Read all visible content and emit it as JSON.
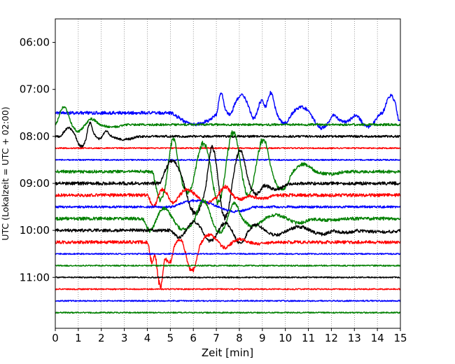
{
  "chart_data": {
    "type": "line",
    "title": "",
    "xlabel": "Zeit  [min]",
    "ylabel": "UTC (Lokalzeit = UTC + 02:00)",
    "xlim": [
      0,
      15
    ],
    "xticks": [
      0,
      1,
      2,
      3,
      4,
      5,
      6,
      7,
      8,
      9,
      10,
      11,
      12,
      13,
      14,
      15
    ],
    "ylim_minutes_utc": [
      330,
      725
    ],
    "yticks": [
      {
        "minutes": 360,
        "label": "06:00"
      },
      {
        "minutes": 420,
        "label": "07:00"
      },
      {
        "minutes": 480,
        "label": "08:00"
      },
      {
        "minutes": 540,
        "label": "09:00"
      },
      {
        "minutes": 600,
        "label": "10:00"
      },
      {
        "minutes": 660,
        "label": "11:00"
      }
    ],
    "grid": "vertical dotted at each minute",
    "legend": "none",
    "series_colors": [
      "#0000ff",
      "#008000",
      "#000000",
      "#ff0000"
    ],
    "trace_spacing_minutes": 15,
    "traces": [
      {
        "start": "07:30",
        "color": "#0000ff",
        "activity": "high",
        "events": [
          [
            5.0,
            7.0,
            15
          ],
          [
            7.0,
            7.3,
            -35
          ],
          [
            7.3,
            7.6,
            5
          ],
          [
            7.6,
            8.4,
            -25
          ],
          [
            8.4,
            8.7,
            10
          ],
          [
            8.7,
            9.1,
            -20
          ],
          [
            9.1,
            9.5,
            -30
          ],
          [
            9.5,
            10.2,
            15
          ],
          [
            10.2,
            11.0,
            -8
          ],
          [
            11.0,
            12.0,
            20
          ],
          [
            12.0,
            13.0,
            12
          ],
          [
            13.0,
            14.0,
            18
          ],
          [
            14.2,
            14.8,
            -25
          ],
          [
            14.8,
            15.0,
            20
          ]
        ]
      },
      {
        "start": "07:45",
        "color": "#008000",
        "activity": "medium",
        "events": [
          [
            0.0,
            0.6,
            -25
          ],
          [
            0.6,
            1.2,
            10
          ],
          [
            1.2,
            1.8,
            -8
          ],
          [
            1.8,
            3.0,
            3
          ]
        ]
      },
      {
        "start": "08:00",
        "color": "#000000",
        "activity": "medium",
        "events": [
          [
            0.2,
            0.8,
            -12
          ],
          [
            0.8,
            1.3,
            15
          ],
          [
            1.3,
            1.6,
            -25
          ],
          [
            1.6,
            2.0,
            5
          ],
          [
            2.0,
            2.3,
            -10
          ],
          [
            2.3,
            3.5,
            4
          ]
        ]
      },
      {
        "start": "08:15",
        "color": "#ff0000",
        "activity": "low",
        "events": []
      },
      {
        "start": "08:30",
        "color": "#0000ff",
        "activity": "low",
        "events": []
      },
      {
        "start": "08:45",
        "color": "#008000",
        "activity": "high",
        "events": [
          [
            4.2,
            4.8,
            40
          ],
          [
            4.8,
            5.3,
            -50
          ],
          [
            5.3,
            6.0,
            30
          ],
          [
            6.0,
            6.7,
            -40
          ],
          [
            6.7,
            7.3,
            45
          ],
          [
            7.3,
            8.0,
            -55
          ],
          [
            8.0,
            8.6,
            35
          ],
          [
            8.6,
            9.3,
            -45
          ],
          [
            9.3,
            10.2,
            25
          ],
          [
            10.2,
            11.2,
            -10
          ],
          [
            11.2,
            12.5,
            3
          ]
        ]
      },
      {
        "start": "09:00",
        "color": "#000000",
        "activity": "high",
        "events": [
          [
            4.5,
            5.5,
            -30
          ],
          [
            5.5,
            6.5,
            40
          ],
          [
            6.5,
            7.0,
            -55
          ],
          [
            7.0,
            7.6,
            50
          ],
          [
            7.6,
            8.3,
            -45
          ],
          [
            8.3,
            9.0,
            15
          ],
          [
            9.0,
            10.0,
            8
          ]
        ]
      },
      {
        "start": "09:15",
        "color": "#ff0000",
        "activity": "high",
        "events": [
          [
            4.0,
            4.4,
            18
          ],
          [
            4.4,
            4.8,
            -10
          ],
          [
            4.8,
            5.3,
            12
          ],
          [
            5.3,
            6.0,
            -8
          ],
          [
            6.0,
            7.0,
            10
          ],
          [
            7.0,
            7.6,
            -12
          ],
          [
            7.6,
            8.3,
            6
          ],
          [
            8.3,
            9.5,
            4
          ]
        ]
      },
      {
        "start": "09:30",
        "color": "#0000ff",
        "activity": "medium",
        "events": [
          [
            5.0,
            7.0,
            -8
          ],
          [
            7.0,
            8.5,
            6
          ]
        ]
      },
      {
        "start": "09:45",
        "color": "#008000",
        "activity": "high",
        "events": [
          [
            3.8,
            4.3,
            18
          ],
          [
            4.3,
            5.0,
            -15
          ],
          [
            5.0,
            6.0,
            15
          ],
          [
            6.0,
            6.7,
            -25
          ],
          [
            6.7,
            7.4,
            20
          ],
          [
            7.4,
            8.0,
            -22
          ],
          [
            8.0,
            9.0,
            10
          ],
          [
            9.0,
            10.0,
            -5
          ],
          [
            10.0,
            11.0,
            6
          ],
          [
            11.0,
            12.5,
            2
          ]
        ]
      },
      {
        "start": "10:00",
        "color": "#000000",
        "activity": "high",
        "events": [
          [
            5.0,
            5.6,
            10
          ],
          [
            5.6,
            6.3,
            -12
          ],
          [
            6.3,
            7.0,
            15
          ],
          [
            7.0,
            7.6,
            -10
          ],
          [
            7.6,
            8.3,
            18
          ],
          [
            8.3,
            9.0,
            -8
          ],
          [
            9.0,
            10.0,
            6
          ],
          [
            10.0,
            11.0,
            -5
          ],
          [
            11.0,
            12.0,
            5
          ],
          [
            12.0,
            13.0,
            3
          ],
          [
            13.0,
            15.0,
            2
          ]
        ]
      },
      {
        "start": "10:15",
        "color": "#ff0000",
        "activity": "high",
        "events": [
          [
            4.0,
            4.3,
            35
          ],
          [
            4.3,
            4.7,
            70
          ],
          [
            4.7,
            5.1,
            30
          ],
          [
            5.1,
            5.5,
            -5
          ],
          [
            5.5,
            6.2,
            40
          ],
          [
            6.2,
            7.0,
            -10
          ],
          [
            7.0,
            7.6,
            8
          ],
          [
            7.6,
            8.3,
            -4
          ],
          [
            8.3,
            9.5,
            2
          ]
        ]
      },
      {
        "start": "10:30",
        "color": "#0000ff",
        "activity": "low",
        "events": []
      },
      {
        "start": "10:45",
        "color": "#008000",
        "activity": "low",
        "events": []
      },
      {
        "start": "11:00",
        "color": "#000000",
        "activity": "low",
        "events": []
      },
      {
        "start": "11:15",
        "color": "#ff0000",
        "activity": "low",
        "events": []
      },
      {
        "start": "11:30",
        "color": "#0000ff",
        "activity": "low",
        "events": []
      },
      {
        "start": "11:45",
        "color": "#008000",
        "activity": "low",
        "events": []
      }
    ]
  }
}
